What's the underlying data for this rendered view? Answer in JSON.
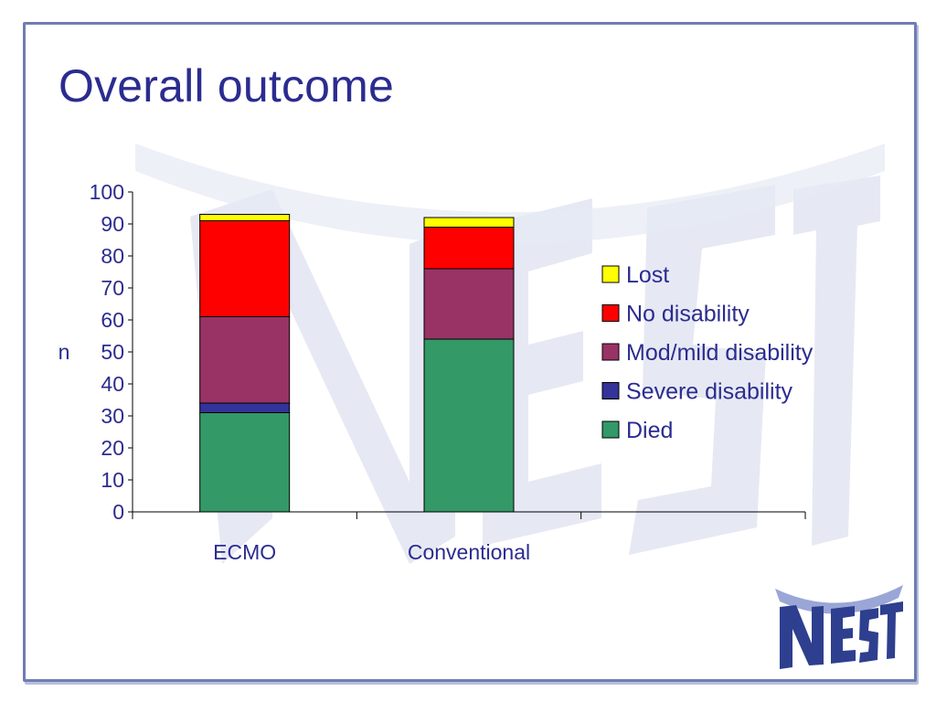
{
  "slide": {
    "title": "Overall outcome"
  },
  "logo": {
    "text": "NEST",
    "icon": "nest-logo",
    "colors": {
      "dark": "#2e3f8f",
      "light": "#9aa6d6"
    }
  },
  "colors": {
    "title": "#2b2c8f",
    "frame": "#6f7db3"
  },
  "chart_data": {
    "type": "bar",
    "stacked": true,
    "title": "",
    "xlabel": "",
    "ylabel": "n",
    "ylim": [
      0,
      100
    ],
    "yticks": [
      0,
      10,
      20,
      30,
      40,
      50,
      60,
      70,
      80,
      90,
      100
    ],
    "grid": false,
    "legend_position": "right",
    "categories": [
      "ECMO",
      "Conventional"
    ],
    "series": [
      {
        "name": "Died",
        "color": "#339966",
        "values": [
          31,
          54
        ]
      },
      {
        "name": "Severe disability",
        "color": "#333399",
        "values": [
          3,
          0
        ]
      },
      {
        "name": "Mod/mild disability",
        "color": "#993366",
        "values": [
          27,
          22
        ]
      },
      {
        "name": "No disability",
        "color": "#ff0000",
        "values": [
          30,
          13
        ]
      },
      {
        "name": "Lost",
        "color": "#ffff00",
        "values": [
          2,
          3
        ]
      }
    ],
    "legend_order": [
      "Lost",
      "No disability",
      "Mod/mild disability",
      "Severe disability",
      "Died"
    ]
  }
}
